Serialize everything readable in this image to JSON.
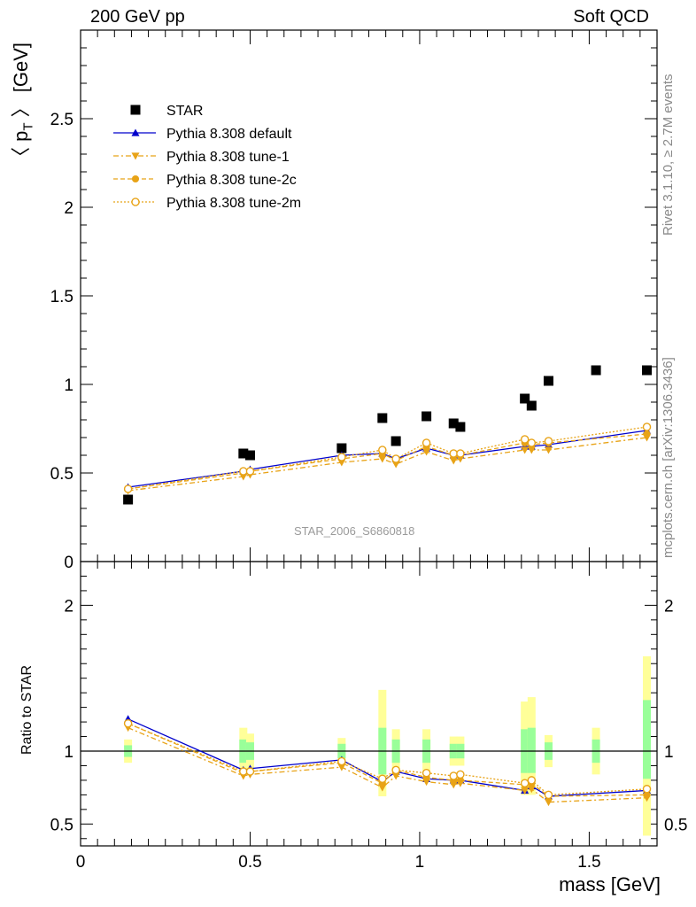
{
  "header": {
    "left": "200 GeV pp",
    "right": "Soft QCD"
  },
  "side": {
    "rivet": "Rivet 3.1.10, ≥ 2.7M events",
    "mcplots": "mcplots.cern.ch [arXiv:1306.3436]"
  },
  "analysis_id": "STAR_2006_S6860818",
  "colors": {
    "data": "#000000",
    "default": "#0000cc",
    "tunes": "#e8a317",
    "band_inner": "#99ff99",
    "band_outer": "#ffff99"
  },
  "chart_data": [
    {
      "type": "scatter",
      "panel": "upper",
      "ylabel": "〈 p_T 〉 [GeV]",
      "xlim": [
        0,
        1.7
      ],
      "ylim": [
        0,
        3.0
      ],
      "y_tick_labels": [
        "0",
        "0.5",
        "1",
        "1.5",
        "2",
        "2.5"
      ],
      "legend_position": "top-left",
      "series": [
        {
          "name": "STAR",
          "style": "square",
          "x": [
            0.14,
            0.48,
            0.5,
            0.77,
            0.89,
            0.93,
            1.02,
            1.1,
            1.12,
            1.31,
            1.33,
            1.38,
            1.52,
            1.67
          ],
          "y": [
            0.35,
            0.61,
            0.6,
            0.64,
            0.81,
            0.68,
            0.82,
            0.78,
            0.76,
            0.92,
            0.88,
            1.02,
            1.08,
            1.08
          ]
        },
        {
          "name": "Pythia 8.308 default",
          "style": "solid-triangle-up",
          "x": [
            0.14,
            0.48,
            0.5,
            0.77,
            0.89,
            0.93,
            1.02,
            1.1,
            1.12,
            1.31,
            1.33,
            1.38,
            1.67
          ],
          "y": [
            0.42,
            0.51,
            0.52,
            0.6,
            0.61,
            0.58,
            0.64,
            0.6,
            0.6,
            0.65,
            0.65,
            0.66,
            0.74
          ]
        },
        {
          "name": "Pythia 8.308 tune-1",
          "style": "dashdot-triangle-down",
          "x": [
            0.14,
            0.48,
            0.5,
            0.77,
            0.89,
            0.93,
            1.02,
            1.1,
            1.12,
            1.31,
            1.33,
            1.38,
            1.67
          ],
          "y": [
            0.4,
            0.48,
            0.49,
            0.56,
            0.58,
            0.55,
            0.62,
            0.57,
            0.58,
            0.63,
            0.63,
            0.63,
            0.7
          ]
        },
        {
          "name": "Pythia 8.308 tune-2c",
          "style": "dashed-circle",
          "x": [
            0.14,
            0.48,
            0.5,
            0.77,
            0.89,
            0.93,
            1.02,
            1.1,
            1.12,
            1.31,
            1.33,
            1.38,
            1.67
          ],
          "y": [
            0.41,
            0.5,
            0.51,
            0.58,
            0.61,
            0.57,
            0.65,
            0.6,
            0.6,
            0.67,
            0.66,
            0.67,
            0.72
          ]
        },
        {
          "name": "Pythia 8.308 tune-2m",
          "style": "dotted-open-circle",
          "x": [
            0.14,
            0.48,
            0.5,
            0.77,
            0.89,
            0.93,
            1.02,
            1.1,
            1.12,
            1.31,
            1.33,
            1.38,
            1.67
          ],
          "y": [
            0.41,
            0.51,
            0.51,
            0.59,
            0.63,
            0.58,
            0.67,
            0.61,
            0.61,
            0.69,
            0.67,
            0.68,
            0.76
          ]
        }
      ]
    },
    {
      "type": "line",
      "panel": "lower",
      "ylabel": "Ratio to STAR",
      "xlabel": "mass [GeV]",
      "xlim": [
        0,
        1.7
      ],
      "ylim": [
        0.35,
        2.3
      ],
      "reference_line": 1,
      "x_tick_labels": [
        "0",
        "0.5",
        "1",
        "1.5"
      ],
      "x_tick_values": [
        0,
        0.5,
        1,
        1.5
      ],
      "y_tick_labels": [
        "0.5",
        "1",
        "2"
      ],
      "y_tick_values": [
        0.5,
        1,
        2
      ],
      "bands": {
        "x": [
          0.14,
          0.48,
          0.5,
          0.77,
          0.89,
          0.93,
          1.02,
          1.1,
          1.12,
          1.31,
          1.33,
          1.38,
          1.52,
          1.67
        ],
        "inner_low": [
          0.96,
          0.92,
          0.94,
          0.95,
          0.84,
          0.92,
          0.92,
          0.95,
          0.95,
          0.85,
          0.85,
          0.94,
          0.92,
          0.81
        ],
        "inner_high": [
          1.04,
          1.08,
          1.06,
          1.05,
          1.16,
          1.08,
          1.08,
          1.05,
          1.05,
          1.15,
          1.16,
          1.06,
          1.08,
          1.35
        ],
        "outer_low": [
          0.92,
          0.84,
          0.86,
          0.91,
          0.69,
          0.86,
          0.86,
          0.9,
          0.9,
          0.7,
          0.7,
          0.89,
          0.84,
          0.42
        ],
        "outer_high": [
          1.08,
          1.16,
          1.12,
          1.09,
          1.42,
          1.15,
          1.15,
          1.1,
          1.1,
          1.34,
          1.37,
          1.11,
          1.16,
          1.65
        ]
      },
      "series": [
        {
          "name": "Pythia 8.308 default",
          "x": [
            0.14,
            0.48,
            0.5,
            0.77,
            0.89,
            0.93,
            1.02,
            1.1,
            1.12,
            1.31,
            1.33,
            1.38,
            1.67
          ],
          "y": [
            1.22,
            0.87,
            0.88,
            0.94,
            0.79,
            0.86,
            0.81,
            0.8,
            0.8,
            0.73,
            0.76,
            0.69,
            0.73
          ]
        },
        {
          "name": "Pythia 8.308 tune-1",
          "x": [
            0.14,
            0.48,
            0.5,
            0.77,
            0.89,
            0.93,
            1.02,
            1.1,
            1.12,
            1.31,
            1.33,
            1.38,
            1.67
          ],
          "y": [
            1.16,
            0.83,
            0.84,
            0.89,
            0.75,
            0.83,
            0.79,
            0.77,
            0.78,
            0.73,
            0.74,
            0.65,
            0.68
          ]
        },
        {
          "name": "Pythia 8.308 tune-2c",
          "x": [
            0.14,
            0.48,
            0.5,
            0.77,
            0.89,
            0.93,
            1.02,
            1.1,
            1.12,
            1.31,
            1.33,
            1.38,
            1.67
          ],
          "y": [
            1.19,
            0.85,
            0.86,
            0.92,
            0.78,
            0.87,
            0.82,
            0.8,
            0.8,
            0.77,
            0.78,
            0.69,
            0.7
          ]
        },
        {
          "name": "Pythia 8.308 tune-2m",
          "x": [
            0.14,
            0.48,
            0.5,
            0.77,
            0.89,
            0.93,
            1.02,
            1.1,
            1.12,
            1.31,
            1.33,
            1.38,
            1.67
          ],
          "y": [
            1.19,
            0.86,
            0.86,
            0.93,
            0.81,
            0.87,
            0.85,
            0.83,
            0.84,
            0.78,
            0.8,
            0.7,
            0.74
          ]
        }
      ]
    }
  ]
}
